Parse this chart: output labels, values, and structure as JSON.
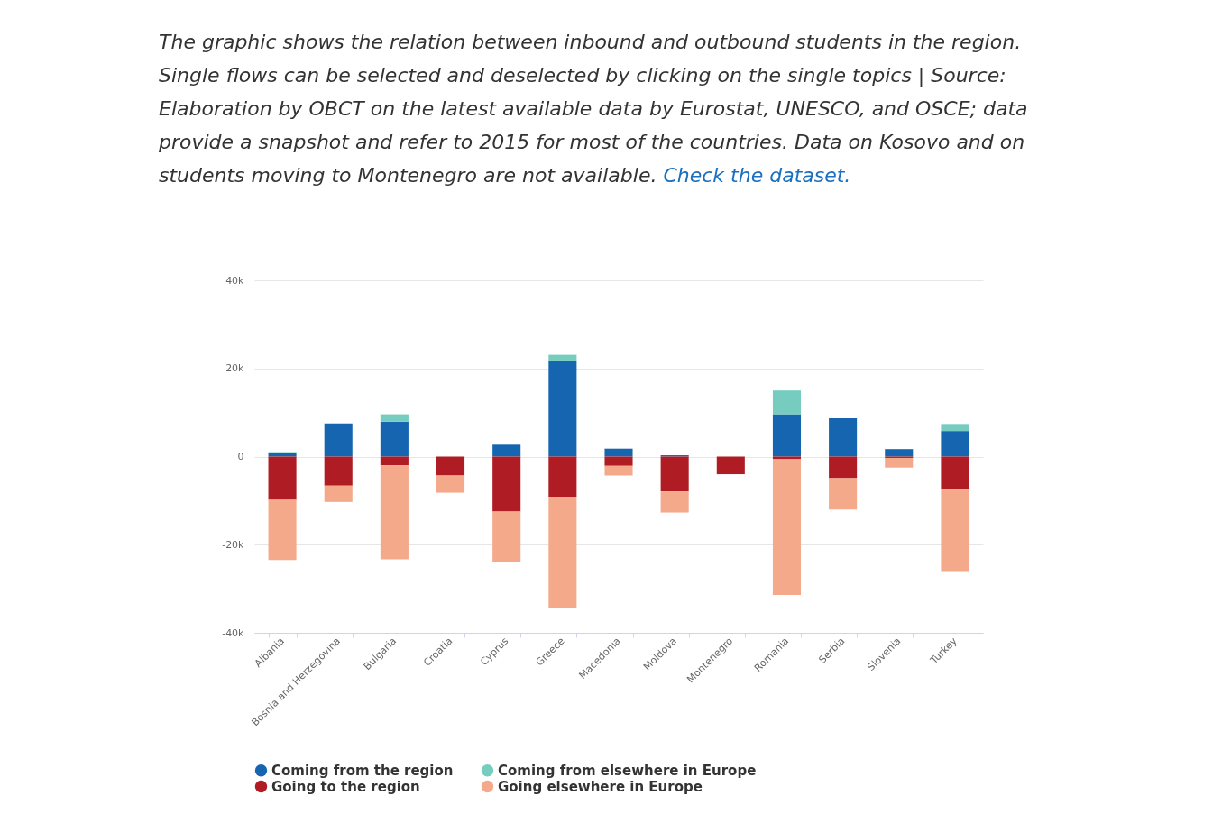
{
  "chart_data": {
    "type": "bar",
    "stacked": true,
    "annotations": [
      "The graphic shows the relation between inbound and outbound students in the region. Single flows can be selected and deselected by clicking on the single topics | Source: Elaboration by OBCT on the latest available data by Eurostat, UNESCO, and OSCE; data provide a snapshot and refer to 2015 for most of the countries. Data on Kosovo and on students moving to Montenegro are not available.",
      "Check the dataset."
    ],
    "categories": [
      "Albania",
      "Bosnia and Herzegovina",
      "Bulgaria",
      "Croatia",
      "Cyprus",
      "Greece",
      "Macedonia",
      "Moldova",
      "Montenegro",
      "Romania",
      "Serbia",
      "Slovenia",
      "Turkey"
    ],
    "series": [
      {
        "name": "Coming from the region",
        "color": "#1565b0",
        "values": [
          700,
          7500,
          7900,
          null,
          2700,
          21800,
          1800,
          300,
          null,
          9600,
          8700,
          1700,
          5800
        ]
      },
      {
        "name": "Coming from elsewhere in Europe",
        "color": "#76cdbf",
        "values": [
          300,
          null,
          1700,
          null,
          null,
          1300,
          null,
          null,
          null,
          5400,
          null,
          null,
          1600
        ]
      },
      {
        "name": "Going to the region",
        "color": "#b01c23",
        "values": [
          -9800,
          -6600,
          -2000,
          -4300,
          -12500,
          -9100,
          -2100,
          -7900,
          -4000,
          -600,
          -4900,
          -300,
          -7500
        ]
      },
      {
        "name": "Going elsewhere in Europe",
        "color": "#f4a98a",
        "values": [
          -13700,
          -3700,
          -21300,
          -3900,
          -11500,
          -25400,
          -2200,
          -4800,
          null,
          -30800,
          -7100,
          -2200,
          -18700
        ]
      }
    ],
    "ylim": [
      -40000,
      40000
    ],
    "yticks": [
      {
        "value": -40000,
        "label": "-40k"
      },
      {
        "value": -20000,
        "label": "-20k"
      },
      0,
      {
        "value": 20000,
        "label": "20k"
      },
      {
        "value": 40000,
        "label": "40k"
      }
    ],
    "grid": "y",
    "legend": "bottom"
  }
}
